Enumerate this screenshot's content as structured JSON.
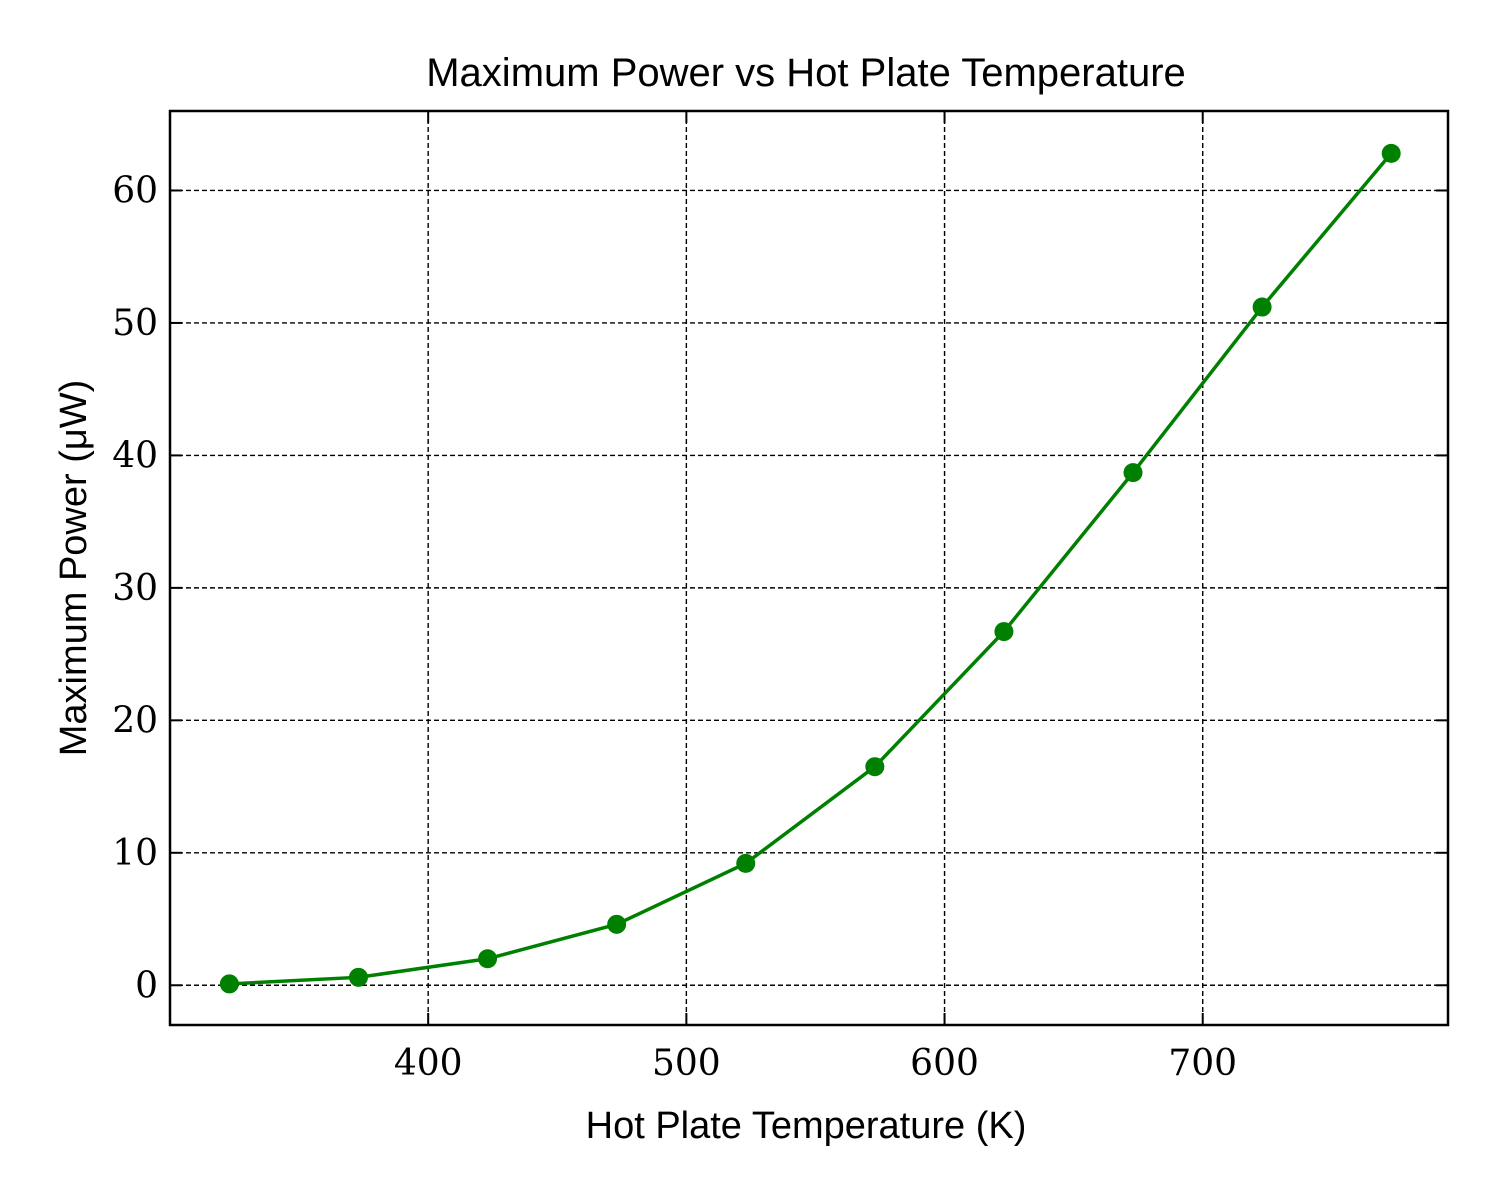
{
  "chart_data": {
    "type": "line",
    "title": "Maximum Power vs Hot Plate Temperature",
    "xlabel": "Hot Plate Temperature (K)",
    "ylabel": "Maximum Power (μW)",
    "xlim": [
      300,
      795
    ],
    "ylim": [
      -3,
      66
    ],
    "xticks": [
      400,
      500,
      600,
      700
    ],
    "yticks": [
      0,
      10,
      20,
      30,
      40,
      50,
      60
    ],
    "grid": true,
    "color": "#008000",
    "series": [
      {
        "x": [
          323,
          373,
          423,
          473,
          523,
          573,
          623,
          673,
          723,
          773
        ],
        "y": [
          0.1,
          0.6,
          2.0,
          4.6,
          9.2,
          16.5,
          26.7,
          38.7,
          51.2,
          62.8
        ]
      }
    ]
  }
}
